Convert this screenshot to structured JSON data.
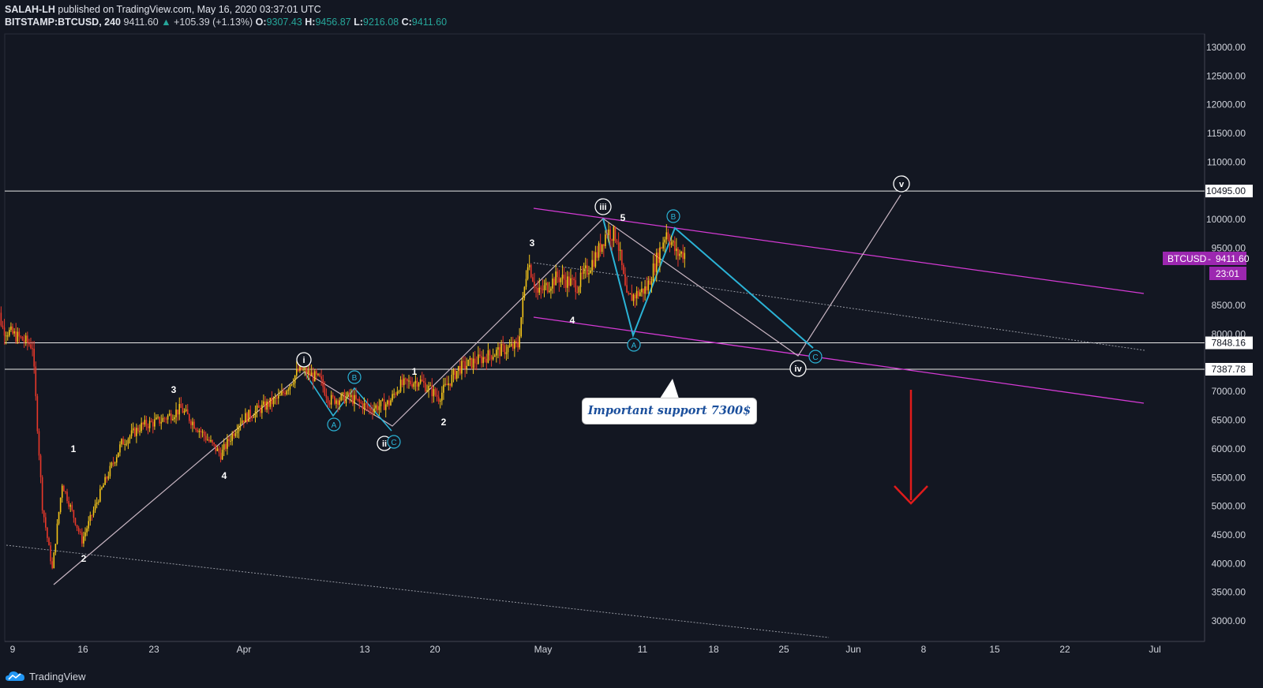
{
  "header": {
    "author": "SALAH-LH",
    "published": "published on TradingView.com, May 16, 2020 03:37:01 UTC",
    "symbol": "BITSTAMP:BTCUSD, 240",
    "last": "9411.60",
    "change_arrow": "▲",
    "change": "+105.39 (+1.13%)",
    "open_label": "O:",
    "open": "9307.43",
    "high_label": "H:",
    "high": "9456.87",
    "low_label": "L:",
    "low": "9216.08",
    "close_label": "C:",
    "close": "9411.60"
  },
  "footer": {
    "brand": "TradingView",
    "logo_icon": "tradingview-cloud-icon"
  },
  "colors": {
    "background": "#131722",
    "up": "#f5c518",
    "down": "#e8382a",
    "channel": "#d43ad4",
    "wave": "#c9b6c3",
    "abc": "#2bb3d6",
    "price_tag": "#9c27b0",
    "arrow": "#e01b1b",
    "callout_text": "#1b4f9c"
  },
  "annotations": {
    "callout": "Important support 7300$",
    "wave_labels": [
      "1",
      "2",
      "3",
      "4",
      "1",
      "2",
      "3",
      "4",
      "5"
    ],
    "circled_labels": [
      "i",
      "ii",
      "iii",
      "iv",
      "v"
    ],
    "abc_labels": [
      "A",
      "B",
      "C",
      "A",
      "B",
      "C"
    ],
    "down_arrow_icon": "red-down-arrow-icon"
  },
  "price_tag": {
    "symbol": "BTCUSD",
    "value": "9411.60",
    "countdown": "23:01"
  },
  "chart_data": {
    "type": "candlestick",
    "title": "",
    "x_ticks": [
      "9",
      "16",
      "23",
      "Apr",
      "13",
      "20",
      "May",
      "11",
      "18",
      "25",
      "Jun",
      "8",
      "15",
      "22",
      "Jul"
    ],
    "y_ticks": [
      "13000.00",
      "12500.00",
      "12000.00",
      "11500.00",
      "11000.00",
      "10000.00",
      "9500.00",
      "9000.00",
      "8500.00",
      "8000.00",
      "7000.00",
      "6500.00",
      "6000.00",
      "5500.00",
      "5000.00",
      "4500.00",
      "4000.00",
      "3500.00",
      "3000.00"
    ],
    "ylim": [
      3000,
      13000
    ],
    "horizontal_levels": [
      {
        "price": 10495.0,
        "label": "10495.00"
      },
      {
        "price": 7848.16,
        "label": "7848.16"
      },
      {
        "price": 7387.78,
        "label": "7387.78"
      }
    ],
    "ohlc_last": {
      "open": 9307.43,
      "high": 9456.87,
      "low": 9216.08,
      "close": 9411.6
    },
    "price_path": [
      {
        "date": "2020-03-07",
        "price": 8800
      },
      {
        "date": "2020-03-08",
        "price": 8100
      },
      {
        "date": "2020-03-10",
        "price": 7900
      },
      {
        "date": "2020-03-11",
        "price": 7800
      },
      {
        "date": "2020-03-12",
        "price": 5000
      },
      {
        "date": "2020-03-13",
        "price": 3900
      },
      {
        "date": "2020-03-14",
        "price": 5400
      },
      {
        "date": "2020-03-16",
        "price": 4400
      },
      {
        "date": "2020-03-18",
        "price": 5300
      },
      {
        "date": "2020-03-20",
        "price": 6100
      },
      {
        "date": "2020-03-22",
        "price": 6400
      },
      {
        "date": "2020-03-24",
        "price": 6500
      },
      {
        "date": "2020-03-26",
        "price": 6700
      },
      {
        "date": "2020-03-28",
        "price": 6300
      },
      {
        "date": "2020-03-30",
        "price": 5900
      },
      {
        "date": "2020-04-01",
        "price": 6500
      },
      {
        "date": "2020-04-03",
        "price": 6700
      },
      {
        "date": "2020-04-05",
        "price": 6900
      },
      {
        "date": "2020-04-07",
        "price": 7400
      },
      {
        "date": "2020-04-09",
        "price": 7200
      },
      {
        "date": "2020-04-10",
        "price": 6850
      },
      {
        "date": "2020-04-12",
        "price": 6900
      },
      {
        "date": "2020-04-13",
        "price": 6800
      },
      {
        "date": "2020-04-14",
        "price": 6700
      },
      {
        "date": "2020-04-16",
        "price": 6800
      },
      {
        "date": "2020-04-17",
        "price": 7100
      },
      {
        "date": "2020-04-19",
        "price": 7200
      },
      {
        "date": "2020-04-21",
        "price": 6900
      },
      {
        "date": "2020-04-23",
        "price": 7400
      },
      {
        "date": "2020-04-25",
        "price": 7550
      },
      {
        "date": "2020-04-27",
        "price": 7700
      },
      {
        "date": "2020-04-29",
        "price": 7800
      },
      {
        "date": "2020-04-30",
        "price": 9300
      },
      {
        "date": "2020-05-01",
        "price": 8700
      },
      {
        "date": "2020-05-03",
        "price": 9000
      },
      {
        "date": "2020-05-05",
        "price": 8850
      },
      {
        "date": "2020-05-07",
        "price": 9400
      },
      {
        "date": "2020-05-08",
        "price": 9800
      },
      {
        "date": "2020-05-09",
        "price": 9700
      },
      {
        "date": "2020-05-10",
        "price": 8600
      },
      {
        "date": "2020-05-11",
        "price": 8700
      },
      {
        "date": "2020-05-12",
        "price": 8800
      },
      {
        "date": "2020-05-13",
        "price": 9300
      },
      {
        "date": "2020-05-14",
        "price": 9800
      },
      {
        "date": "2020-05-15",
        "price": 9400
      },
      {
        "date": "2020-05-16",
        "price": 9411.6
      }
    ]
  }
}
